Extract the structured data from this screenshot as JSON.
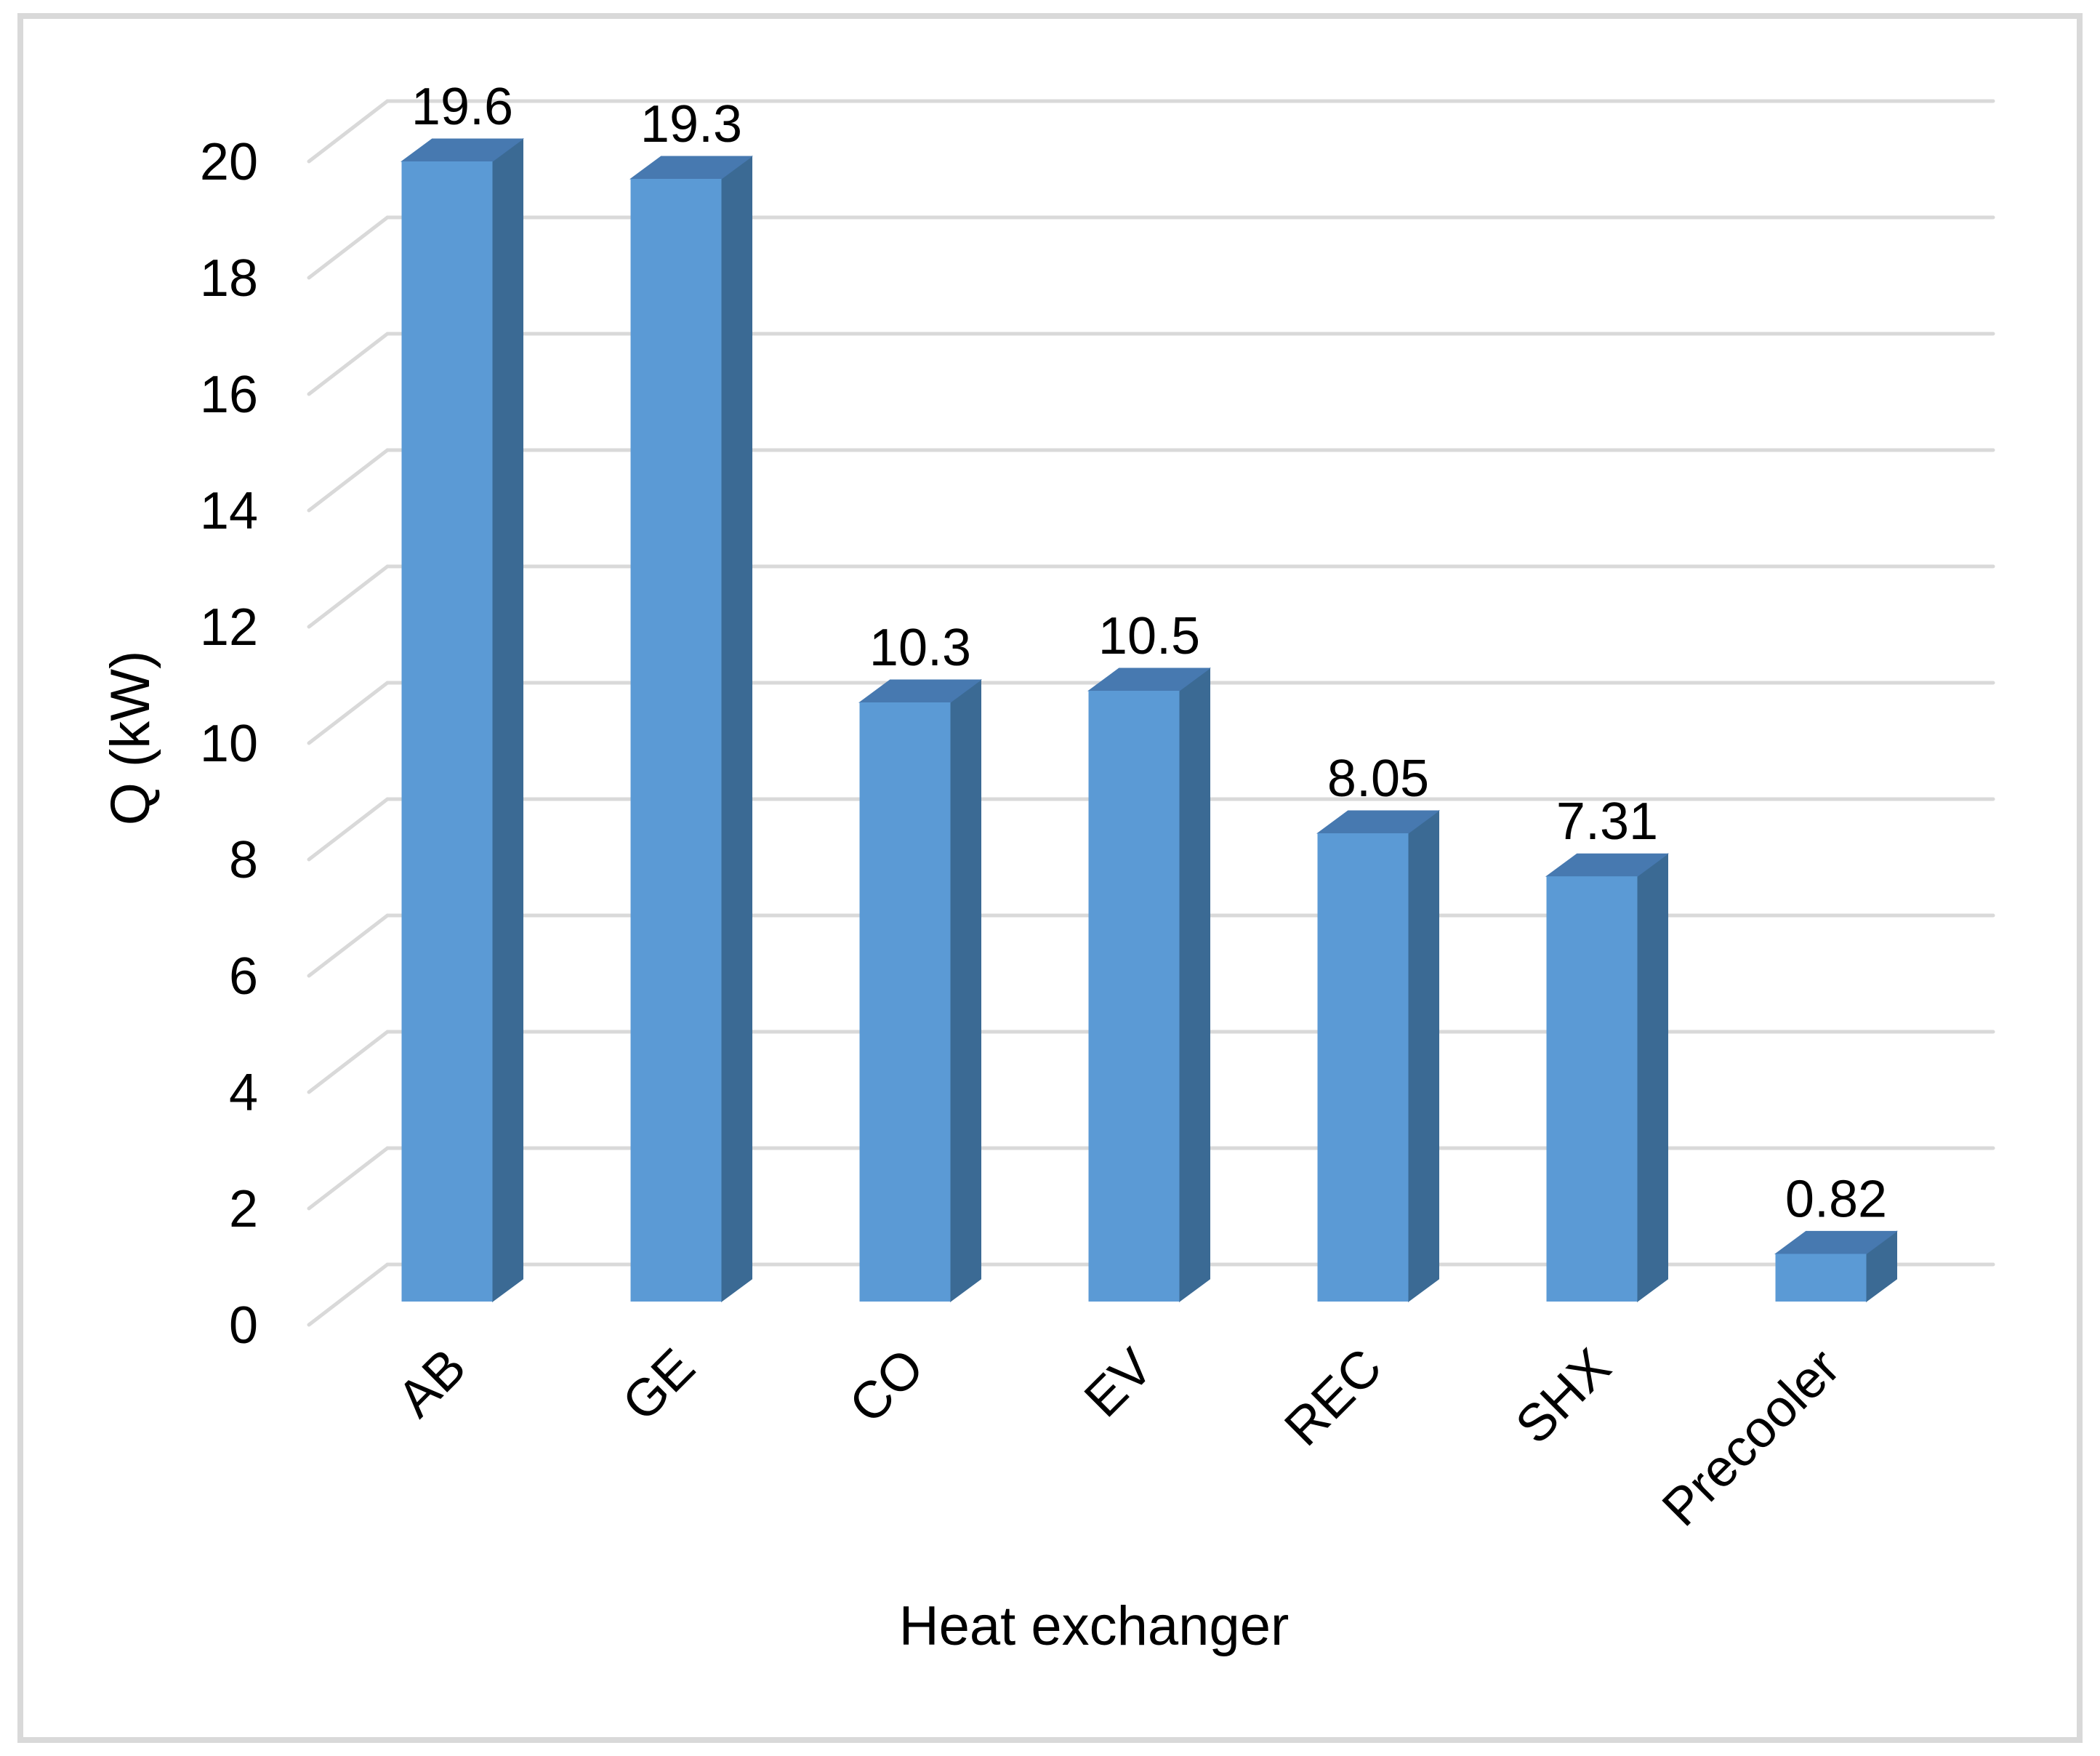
{
  "figure": {
    "background": "#FFFFFF",
    "frame_color": "#D9D9D9"
  },
  "chart_data": {
    "type": "bar",
    "style": "3d-column",
    "xlabel": "Heat exchanger",
    "ylabel": "Q (kW)",
    "categories": [
      "AB",
      "GE",
      "CO",
      "EV",
      "REC",
      "SHX",
      "Precooler"
    ],
    "values": [
      19.6,
      19.3,
      10.3,
      10.5,
      8.05,
      7.31,
      0.82
    ],
    "value_labels": [
      "19.6",
      "19.3",
      "10.3",
      "10.5",
      "8.05",
      "7.31",
      "0.82"
    ],
    "ylim": [
      0,
      20
    ],
    "ytick_interval": 2,
    "ytick_values": [
      0,
      2,
      4,
      6,
      8,
      10,
      12,
      14,
      16,
      18,
      20
    ],
    "ytick_labels": [
      "0",
      "2",
      "4",
      "6",
      "8",
      "10",
      "12",
      "14",
      "16",
      "18",
      "20"
    ],
    "grid": true,
    "legend_visible": false,
    "colors": {
      "bar_front": "#5B9AD5",
      "bar_top": "#4779B0",
      "bar_side": "#3B6A94",
      "gridline": "#D9D9D9",
      "label_text": "#000000"
    }
  }
}
